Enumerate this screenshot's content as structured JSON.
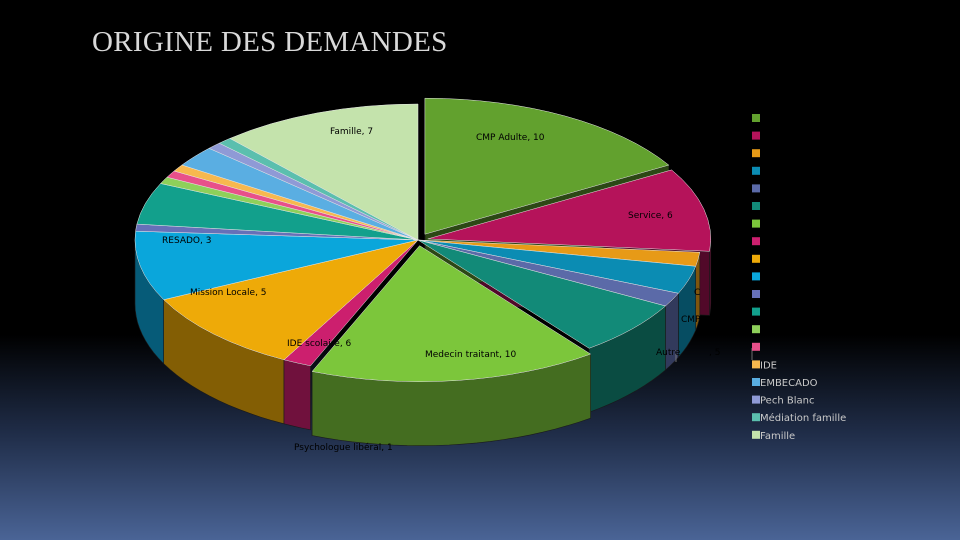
{
  "slide": {
    "title": "ORIGINE DES DEMANDES"
  },
  "chart_data": {
    "type": "pie",
    "title": "ORIGINE DES DEMANDES",
    "style": "3d-exploded",
    "slices": [
      {
        "label": "CMP Adulte",
        "value": 10,
        "data_label": "CMP Adulte, 10",
        "color": "#62a12e"
      },
      {
        "label": "Service",
        "value": 6,
        "data_label": "Service, 6",
        "color": "#b5135a"
      },
      {
        "label": "",
        "value": 1,
        "data_label": "",
        "color": "#e79a17"
      },
      {
        "label": "",
        "value": 2,
        "data_label": "",
        "color": "#0b8cb3"
      },
      {
        "label": "",
        "value": 1,
        "data_label": "C",
        "color": "#5b6aa8"
      },
      {
        "label": "",
        "value": 4,
        "data_label": "CMP",
        "color": "#128a78"
      },
      {
        "label": "Medecin traitant",
        "value": 10,
        "data_label": "Medecin traitant, 10",
        "color": "#7cc63b"
      },
      {
        "label": "Psychologue libéral",
        "value": 1,
        "data_label": "Psychologue libéral, 1",
        "color": "#cc1f6e"
      },
      {
        "label": "IDE scolaire",
        "value": 6,
        "data_label": "IDE scolaire, 6",
        "color": "#eeaa08"
      },
      {
        "label": "Mission Locale",
        "value": 5,
        "data_label": "Mission Locale, 5",
        "color": "#0aa6db"
      },
      {
        "label": "",
        "value": 0.5,
        "data_label": "",
        "color": "#6670b8"
      },
      {
        "label": "RESADO",
        "value": 3,
        "data_label": "RESADO, 3",
        "color": "#12a08c"
      },
      {
        "label": "",
        "value": 0.5,
        "data_label": "",
        "color": "#8ed05a"
      },
      {
        "label": "",
        "value": 0.5,
        "data_label": "",
        "color": "#e8508a"
      },
      {
        "label": "",
        "value": 0.5,
        "data_label": "",
        "color": "#f7b84e"
      },
      {
        "label": "EMBECADO",
        "value": 1.5,
        "data_label": "",
        "color": "#5aaee2"
      },
      {
        "label": "Pech Blanc",
        "value": 0.5,
        "data_label": "",
        "color": "#8f9ad6"
      },
      {
        "label": "Médiation famille",
        "value": 0.5,
        "data_label": "",
        "color": "#5bbfae"
      },
      {
        "label": "Famille",
        "value": 7,
        "data_label": "Famille, 7",
        "color": "#c4e3ac"
      }
    ],
    "other_visible_labels": {
      "autre": "Autre ",
      "autre_tail": ", 5",
      "autre_partial": "5",
      "ide_legend_partial": "IDE"
    },
    "legend": {
      "position": "right",
      "entries": [
        {
          "label": "",
          "color": "#62a12e"
        },
        {
          "label": "",
          "color": "#b5135a"
        },
        {
          "label": "",
          "color": "#e79a17"
        },
        {
          "label": "",
          "color": "#0b8cb3"
        },
        {
          "label": "",
          "color": "#5b6aa8"
        },
        {
          "label": "",
          "color": "#128a78"
        },
        {
          "label": "",
          "color": "#7cc63b"
        },
        {
          "label": "",
          "color": "#cc1f6e"
        },
        {
          "label": "",
          "color": "#eeaa08"
        },
        {
          "label": "",
          "color": "#0aa6db"
        },
        {
          "label": "",
          "color": "#6670b8"
        },
        {
          "label": "",
          "color": "#12a08c"
        },
        {
          "label": "",
          "color": "#8ed05a"
        },
        {
          "label": "",
          "color": "#e8508a"
        },
        {
          "label": "IDE",
          "color": "#f7b84e"
        },
        {
          "label": "EMBECADO",
          "color": "#5aaee2"
        },
        {
          "label": "Pech Blanc",
          "color": "#8f9ad6"
        },
        {
          "label": "Médiation famille",
          "color": "#5bbfae"
        },
        {
          "label": "Famille",
          "color": "#c4e3ac"
        }
      ]
    }
  }
}
